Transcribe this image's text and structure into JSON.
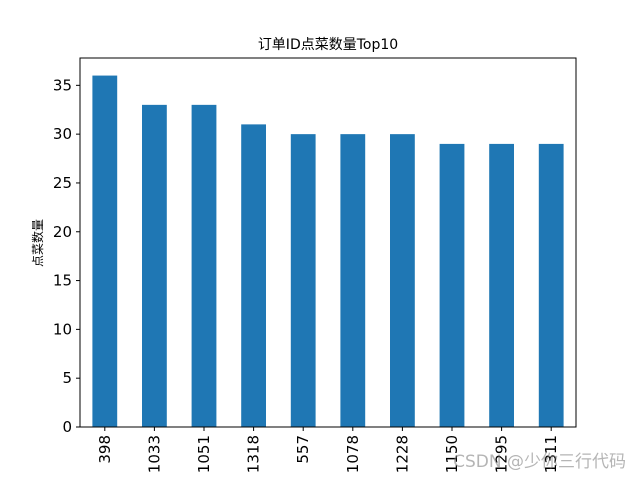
{
  "chart_data": {
    "type": "bar",
    "title": "订单ID点菜数量Top10",
    "xlabel": "",
    "ylabel": "点菜数量",
    "categories": [
      "398",
      "1033",
      "1051",
      "1318",
      "557",
      "1078",
      "1228",
      "1150",
      "1295",
      "1311"
    ],
    "values": [
      36,
      33,
      33,
      31,
      30,
      30,
      30,
      29,
      29,
      29
    ],
    "ylim": [
      0,
      37.8
    ],
    "yticks": [
      0,
      5,
      10,
      15,
      20,
      25,
      30,
      35
    ],
    "bar_color": "#1f77b4",
    "grid": false
  },
  "watermark": "CSDN @少你三行代码"
}
